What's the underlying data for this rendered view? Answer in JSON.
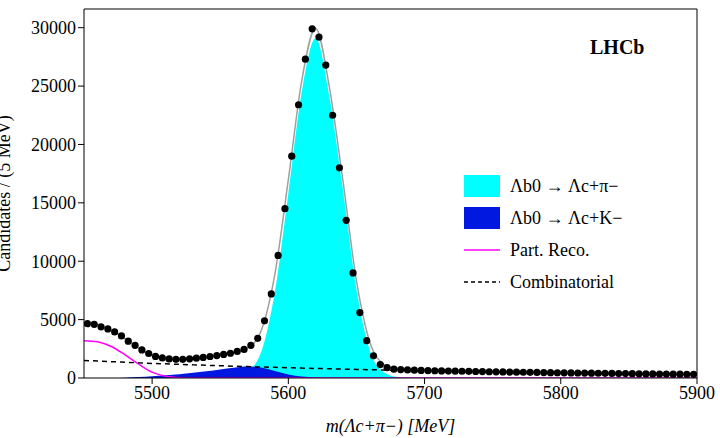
{
  "chart_data": {
    "type": "line",
    "annotation": "LHCb",
    "xlabel": "m(Λc+π−) [MeV]",
    "ylabel": "Candidates / (5 MeV)",
    "xlim": [
      5450,
      5900
    ],
    "xticks": [
      5500,
      5600,
      5700,
      5800,
      5900
    ],
    "ylim": [
      0,
      31600
    ],
    "yticks": [
      0,
      5000,
      10000,
      15000,
      20000,
      25000,
      30000
    ],
    "grid": false,
    "legend": "right",
    "x": [
      5450,
      5460,
      5470,
      5480,
      5490,
      5500,
      5510,
      5520,
      5530,
      5540,
      5550,
      5560,
      5570,
      5580,
      5590,
      5600,
      5610,
      5620,
      5630,
      5640,
      5650,
      5660,
      5670,
      5680,
      5690,
      5700,
      5710,
      5720,
      5730,
      5740,
      5750,
      5760,
      5770,
      5780,
      5790,
      5800,
      5810,
      5820,
      5830,
      5840,
      5850,
      5860,
      5870,
      5880,
      5890,
      5900
    ],
    "series": [
      {
        "name": "Λb0 → Λc+π−",
        "type": "area",
        "color": "#00ffff",
        "values": [
          0,
          0,
          0,
          0,
          10,
          20,
          30,
          50,
          80,
          120,
          180,
          300,
          600,
          2200,
          7300,
          15800,
          24600,
          29100,
          24200,
          16200,
          7600,
          2300,
          500,
          80,
          10,
          0,
          0,
          0,
          0,
          0,
          0,
          0,
          0,
          0,
          0,
          0,
          0,
          0,
          0,
          0,
          0,
          0,
          0,
          0,
          0,
          0
        ]
      },
      {
        "name": "Λb0 → Λc+K−",
        "type": "area",
        "color": "#0018e0",
        "values": [
          0,
          0,
          0,
          30,
          80,
          150,
          230,
          330,
          450,
          580,
          730,
          880,
          980,
          900,
          600,
          300,
          120,
          40,
          10,
          0,
          0,
          0,
          0,
          0,
          0,
          0,
          0,
          0,
          0,
          0,
          0,
          0,
          0,
          0,
          0,
          0,
          0,
          0,
          0,
          0,
          0,
          0,
          0,
          0,
          0,
          0
        ]
      },
      {
        "type": "line",
        "line_style": "solid",
        "color": "#a0a0a0",
        "values": [
          4700,
          4550,
          4100,
          3380,
          2590,
          1920,
          1620,
          1580,
          1660,
          1790,
          1960,
          2190,
          2560,
          4040,
          8810,
          16980,
          25570,
          29960,
          25000,
          16960,
          8335,
          3010,
          1185,
          740,
          650,
          615,
          595,
          575,
          555,
          535,
          515,
          500,
          480,
          465,
          450,
          435,
          420,
          405,
          390,
          375,
          365,
          350,
          340,
          330,
          320,
          310
        ]
      },
      {
        "name": "Part. Reco.",
        "type": "line",
        "line_style": "solid",
        "color": "#ff00ff",
        "values": [
          3200,
          3100,
          2700,
          2000,
          1200,
          500,
          150,
          30,
          0,
          0,
          0,
          0,
          0,
          0,
          0,
          0,
          0,
          0,
          0,
          0,
          0,
          0,
          0,
          0,
          0,
          0,
          0,
          0,
          0,
          0,
          0,
          0,
          0,
          0,
          0,
          0,
          0,
          0,
          0,
          0,
          0,
          0,
          0,
          0,
          0,
          0
        ]
      },
      {
        "name": "Combinatorial",
        "type": "line",
        "line_style": "dashed",
        "color": "#000000",
        "values": [
          1500,
          1450,
          1400,
          1350,
          1300,
          1250,
          1210,
          1170,
          1130,
          1090,
          1050,
          1010,
          980,
          940,
          910,
          880,
          850,
          820,
          790,
          760,
          735,
          710,
          685,
          660,
          640,
          615,
          595,
          575,
          555,
          535,
          515,
          500,
          480,
          465,
          450,
          435,
          420,
          405,
          390,
          375,
          365,
          350,
          340,
          330,
          320,
          310
        ]
      },
      {
        "type": "scatter",
        "marker": "circle",
        "color": "#000000",
        "x": [
          5452.5,
          5457.5,
          5462.5,
          5467.5,
          5472.5,
          5477.5,
          5482.5,
          5487.5,
          5492.5,
          5497.5,
          5502.5,
          5507.5,
          5512.5,
          5517.5,
          5522.5,
          5527.5,
          5532.5,
          5537.5,
          5542.5,
          5547.5,
          5552.5,
          5557.5,
          5562.5,
          5567.5,
          5572.5,
          5577.5,
          5582.5,
          5587.5,
          5592.5,
          5597.5,
          5602.5,
          5607.5,
          5612.5,
          5617.5,
          5622.5,
          5627.5,
          5632.5,
          5637.5,
          5642.5,
          5647.5,
          5652.5,
          5657.5,
          5662.5,
          5667.5,
          5672.5,
          5677.5,
          5682.5,
          5687.5,
          5692.5,
          5697.5,
          5702.5,
          5707.5,
          5712.5,
          5717.5,
          5722.5,
          5727.5,
          5732.5,
          5737.5,
          5742.5,
          5747.5,
          5752.5,
          5757.5,
          5762.5,
          5767.5,
          5772.5,
          5777.5,
          5782.5,
          5787.5,
          5792.5,
          5797.5,
          5802.5,
          5807.5,
          5812.5,
          5817.5,
          5822.5,
          5827.5,
          5832.5,
          5837.5,
          5842.5,
          5847.5,
          5852.5,
          5857.5,
          5862.5,
          5867.5,
          5872.5,
          5877.5,
          5882.5,
          5887.5,
          5892.5,
          5897.5
        ],
        "values": [
          4650,
          4600,
          4380,
          4200,
          3950,
          3600,
          3150,
          2800,
          2400,
          2100,
          1850,
          1720,
          1630,
          1600,
          1600,
          1640,
          1700,
          1760,
          1840,
          1920,
          2020,
          2120,
          2280,
          2450,
          2800,
          3400,
          4900,
          7200,
          10500,
          14500,
          19000,
          23400,
          27300,
          29900,
          29200,
          26800,
          22500,
          18000,
          13500,
          9000,
          5600,
          3200,
          1900,
          1150,
          880,
          760,
          720,
          690,
          670,
          650,
          635,
          620,
          608,
          597,
          588,
          577,
          568,
          557,
          548,
          537,
          528,
          518,
          510,
          502,
          492,
          482,
          475,
          466,
          458,
          450,
          444,
          436,
          430,
          422,
          414,
          406,
          398,
          390,
          383,
          376,
          369,
          360,
          353,
          347,
          341,
          336,
          331,
          326,
          320,
          315
        ]
      }
    ]
  }
}
